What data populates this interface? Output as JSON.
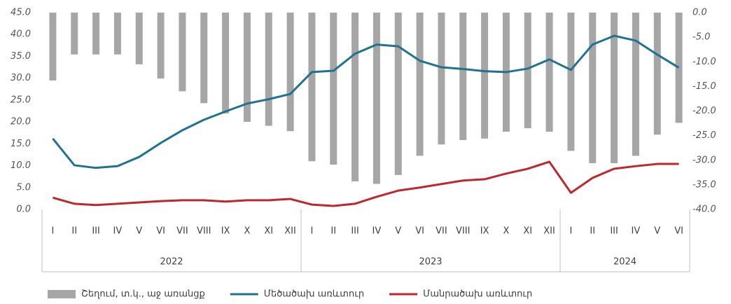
{
  "chart_data": {
    "type": "bar-line",
    "categories": [
      "I",
      "II",
      "III",
      "IV",
      "V",
      "VI",
      "VII",
      "VIII",
      "IX",
      "X",
      "XI",
      "XII",
      "I",
      "II",
      "III",
      "IV",
      "V",
      "VI",
      "VII",
      "VIII",
      "IX",
      "X",
      "XI",
      "XII",
      "I",
      "II",
      "III",
      "IV",
      "V",
      "VI"
    ],
    "years": [
      "2022",
      "2023",
      "2024"
    ],
    "series": [
      {
        "name": "Շեղում, տ.կ., աջ առանցք",
        "type": "bar",
        "axis": "y2",
        "color": "#a6a6a6",
        "values": [
          -13.8,
          -8.5,
          -8.5,
          -8.5,
          -10.5,
          -13.4,
          -16.0,
          -18.4,
          -20.5,
          -22.2,
          -23.0,
          -24.1,
          -30.2,
          -30.9,
          -34.3,
          -34.8,
          -33.0,
          -29.1,
          -26.8,
          -25.9,
          -25.6,
          -24.2,
          -23.5,
          -24.2,
          -28.1,
          -30.6,
          -30.6,
          -29.1,
          -24.8,
          -22.4
        ]
      },
      {
        "name": "Մեծածախ առևտուր",
        "type": "line",
        "color": "#1f7391",
        "values": [
          16.2,
          10.1,
          9.5,
          9.9,
          12.0,
          15.2,
          18.1,
          20.5,
          22.4,
          24.2,
          25.2,
          26.4,
          31.4,
          31.7,
          35.6,
          37.7,
          37.3,
          34.0,
          32.5,
          32.1,
          31.6,
          31.4,
          32.2,
          34.3,
          31.9,
          37.7,
          39.7,
          38.6,
          35.4,
          32.4
        ]
      },
      {
        "name": "Մանրածախ առևտուր",
        "type": "line",
        "color": "#c0272d",
        "values": [
          2.7,
          1.3,
          1.0,
          1.3,
          1.6,
          1.9,
          2.1,
          2.1,
          1.8,
          2.1,
          2.1,
          2.4,
          1.1,
          0.8,
          1.3,
          2.9,
          4.3,
          5.0,
          5.8,
          6.6,
          6.9,
          8.2,
          9.3,
          10.9,
          3.8,
          7.2,
          9.3,
          9.9,
          10.4,
          10.4
        ]
      }
    ],
    "ylim": [
      0,
      45
    ],
    "yticks": [
      {
        "value": 0,
        "label": "0.0"
      },
      {
        "value": 5,
        "label": "5.0"
      },
      {
        "value": 10,
        "label": "10.0"
      },
      {
        "value": 15,
        "label": "15.0"
      },
      {
        "value": 20,
        "label": "20.0"
      },
      {
        "value": 25,
        "label": "25.0"
      },
      {
        "value": 30,
        "label": "30.0"
      },
      {
        "value": 35,
        "label": "35.0"
      },
      {
        "value": 40,
        "label": "40.0"
      },
      {
        "value": 45,
        "label": "45.0"
      }
    ],
    "y2lim": [
      0,
      -40
    ],
    "y2ticks": [
      {
        "value": 0,
        "label": "0.0"
      },
      {
        "value": -5,
        "label": "-5.0"
      },
      {
        "value": -10,
        "label": "-10.0"
      },
      {
        "value": -15,
        "label": "-15.0"
      },
      {
        "value": -20,
        "label": "-20.0"
      },
      {
        "value": -25,
        "label": "-25.0"
      },
      {
        "value": -30,
        "label": "-30.0"
      },
      {
        "value": -35,
        "label": "-35.0"
      },
      {
        "value": -40,
        "label": "-40.0"
      }
    ],
    "grid": false,
    "legend": "bottom"
  }
}
